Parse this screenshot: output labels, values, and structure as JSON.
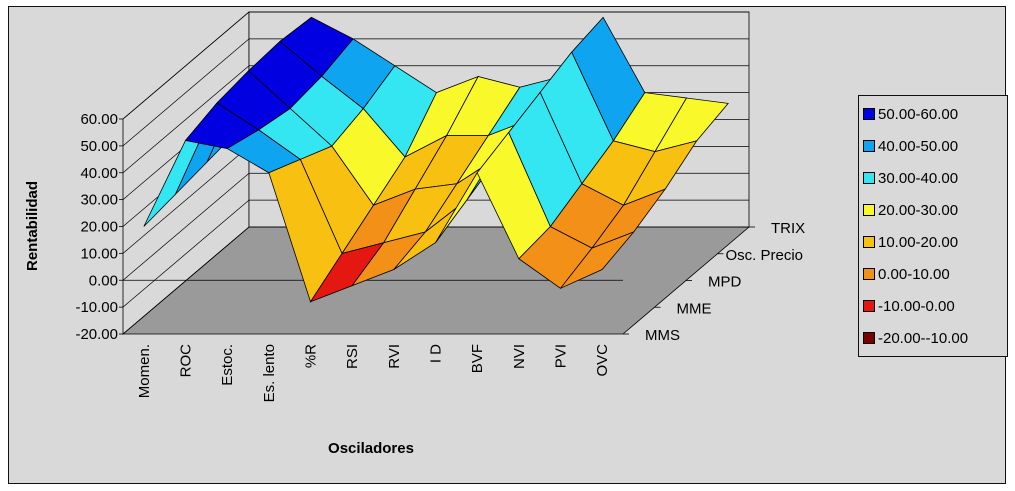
{
  "chart_data": {
    "type": "surface3d",
    "title": "",
    "xlabel": "Osciladores",
    "ylabel": "Rentabilidad",
    "zlabel": "",
    "ylim": [
      -20,
      60
    ],
    "y_ticks": [
      "60.00",
      "50.00",
      "40.00",
      "30.00",
      "20.00",
      "10.00",
      "0.00",
      "-10.00",
      "-20.00"
    ],
    "categories": [
      "Momen.",
      "ROC",
      "Estoc.",
      "Es. lento",
      "%R",
      "RSI",
      "RVI",
      "I D",
      "BVF",
      "NVI",
      "PVI",
      "OVC"
    ],
    "series_labels": [
      "MMS",
      "MME",
      "MPD",
      "Osc. Precio",
      "TRIX"
    ],
    "series": [
      {
        "name": "MMS",
        "values": [
          20,
          52,
          49,
          40,
          -8,
          -2,
          4,
          14,
          40,
          8,
          -3,
          4
        ]
      },
      {
        "name": "MME",
        "values": [
          22,
          56,
          46,
          35,
          0,
          4,
          8,
          20,
          45,
          10,
          2,
          8
        ]
      },
      {
        "name": "MPD",
        "values": [
          24,
          58,
          44,
          30,
          8,
          14,
          16,
          26,
          50,
          16,
          8,
          14
        ]
      },
      {
        "name": "Osc. Precio",
        "values": [
          26,
          59,
          46,
          34,
          16,
          24,
          24,
          30,
          55,
          22,
          18,
          22
        ]
      },
      {
        "name": "TRIX",
        "values": [
          27,
          58,
          50,
          40,
          30,
          36,
          32,
          36,
          58,
          30,
          28,
          26
        ]
      }
    ],
    "legend": {
      "position": "right",
      "items": [
        {
          "label": "50.00-60.00",
          "color": "#0000e0"
        },
        {
          "label": "40.00-50.00",
          "color": "#0ea4f0"
        },
        {
          "label": "30.00-40.00",
          "color": "#33e6f2"
        },
        {
          "label": "20.00-30.00",
          "color": "#f8f82a"
        },
        {
          "label": "10.00-20.00",
          "color": "#f8c010"
        },
        {
          "label": "0.00-10.00",
          "color": "#f29018"
        },
        {
          "label": "-10.00-0.00",
          "color": "#e41810"
        },
        {
          "label": "-20.00--10.00",
          "color": "#7a0000"
        }
      ]
    },
    "grid": true
  }
}
